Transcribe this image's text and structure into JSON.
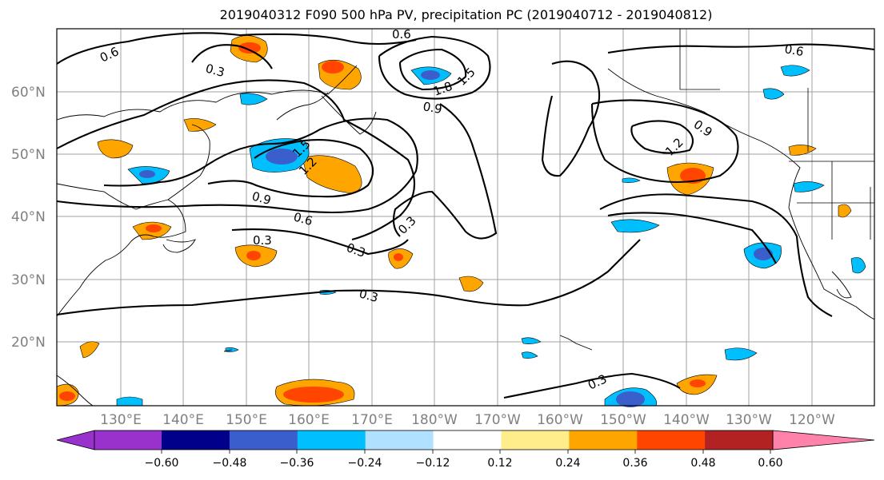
{
  "title": "2019040312 F090 500 hPa PV, precipitation PC (2019040712 - 2019040812)",
  "lat_labels": [
    "60°N",
    "50°N",
    "40°N",
    "30°N",
    "20°N"
  ],
  "lon_labels": [
    "130°E",
    "140°E",
    "150°E",
    "160°E",
    "170°E",
    "180°W",
    "170°W",
    "160°W",
    "150°W",
    "140°W",
    "130°W",
    "120°W"
  ],
  "contour_labels": [
    "0.6",
    "0.3",
    "0.6",
    "1.5",
    "1.8",
    "0.9",
    "0.6",
    "0.9",
    "1.2",
    "1.5",
    "1.2",
    "0.9",
    "0.6",
    "0.3",
    "0.3",
    "0.3",
    "0.3",
    "0.3"
  ],
  "colorbar": {
    "colors": [
      "#9932cc",
      "#00008b",
      "#3a5fcd",
      "#00bfff",
      "#b0e2ff",
      "#ffffff",
      "#ffec8b",
      "#ffa500",
      "#ff4500",
      "#b22222",
      "#ff82ab"
    ],
    "ticks": [
      "−0.60",
      "−0.48",
      "−0.36",
      "−0.24",
      "−0.12",
      "0.12",
      "0.24",
      "0.36",
      "0.48",
      "0.60"
    ]
  }
}
